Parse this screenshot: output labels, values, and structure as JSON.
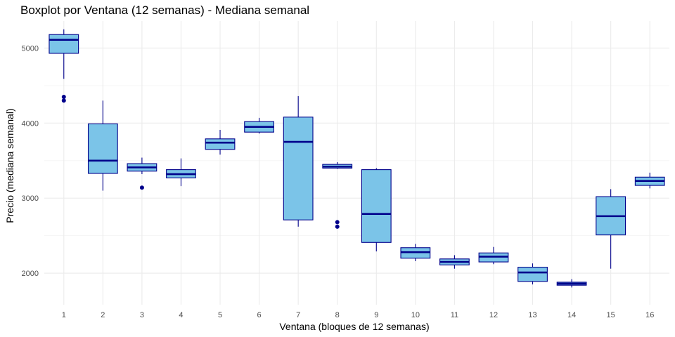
{
  "chart_data": {
    "type": "boxplot",
    "title": "Boxplot por Ventana (12 semanas) - Mediana semanal",
    "xlabel": "Ventana (bloques de 12 semanas)",
    "ylabel": "Precio (mediana semanal)",
    "categories": [
      "1",
      "2",
      "3",
      "4",
      "5",
      "6",
      "7",
      "8",
      "9",
      "10",
      "11",
      "12",
      "13",
      "14",
      "15",
      "16"
    ],
    "y_ticks": [
      2000,
      3000,
      4000,
      5000
    ],
    "ylim": [
      1580,
      5360
    ],
    "grid": true,
    "colors": {
      "box_fill": "#7bc4e8",
      "box_stroke": "#00008b",
      "median": "#00008b",
      "outlier": "#00008b"
    },
    "boxes": [
      {
        "cat": "1",
        "whisker_low": 4590,
        "q1": 4930,
        "median": 5110,
        "q3": 5180,
        "whisker_high": 5250,
        "outliers": [
          4350,
          4300
        ]
      },
      {
        "cat": "2",
        "whisker_low": 3100,
        "q1": 3330,
        "median": 3500,
        "q3": 3990,
        "whisker_high": 4300,
        "outliers": []
      },
      {
        "cat": "3",
        "whisker_low": 3320,
        "q1": 3360,
        "median": 3410,
        "q3": 3460,
        "whisker_high": 3540,
        "outliers": [
          3140
        ]
      },
      {
        "cat": "4",
        "whisker_low": 3160,
        "q1": 3270,
        "median": 3320,
        "q3": 3380,
        "whisker_high": 3530,
        "outliers": []
      },
      {
        "cat": "5",
        "whisker_low": 3580,
        "q1": 3650,
        "median": 3740,
        "q3": 3790,
        "whisker_high": 3910,
        "outliers": []
      },
      {
        "cat": "6",
        "whisker_low": 3860,
        "q1": 3880,
        "median": 3950,
        "q3": 4020,
        "whisker_high": 4070,
        "outliers": []
      },
      {
        "cat": "7",
        "whisker_low": 2620,
        "q1": 2710,
        "median": 3750,
        "q3": 4080,
        "whisker_high": 4360,
        "outliers": []
      },
      {
        "cat": "8",
        "whisker_low": 3390,
        "q1": 3400,
        "median": 3420,
        "q3": 3450,
        "whisker_high": 3480,
        "outliers": [
          2680,
          2620
        ]
      },
      {
        "cat": "9",
        "whisker_low": 2290,
        "q1": 2410,
        "median": 2790,
        "q3": 3380,
        "whisker_high": 3400,
        "outliers": []
      },
      {
        "cat": "10",
        "whisker_low": 2160,
        "q1": 2200,
        "median": 2280,
        "q3": 2340,
        "whisker_high": 2390,
        "outliers": []
      },
      {
        "cat": "11",
        "whisker_low": 2060,
        "q1": 2110,
        "median": 2150,
        "q3": 2190,
        "whisker_high": 2240,
        "outliers": []
      },
      {
        "cat": "12",
        "whisker_low": 2120,
        "q1": 2150,
        "median": 2220,
        "q3": 2270,
        "whisker_high": 2350,
        "outliers": []
      },
      {
        "cat": "13",
        "whisker_low": 1850,
        "q1": 1890,
        "median": 2010,
        "q3": 2080,
        "whisker_high": 2130,
        "outliers": []
      },
      {
        "cat": "14",
        "whisker_low": 1810,
        "q1": 1840,
        "median": 1860,
        "q3": 1880,
        "whisker_high": 1920,
        "outliers": []
      },
      {
        "cat": "15",
        "whisker_low": 2060,
        "q1": 2510,
        "median": 2760,
        "q3": 3020,
        "whisker_high": 3120,
        "outliers": []
      },
      {
        "cat": "16",
        "whisker_low": 3130,
        "q1": 3170,
        "median": 3230,
        "q3": 3280,
        "whisker_high": 3340,
        "outliers": []
      }
    ]
  }
}
